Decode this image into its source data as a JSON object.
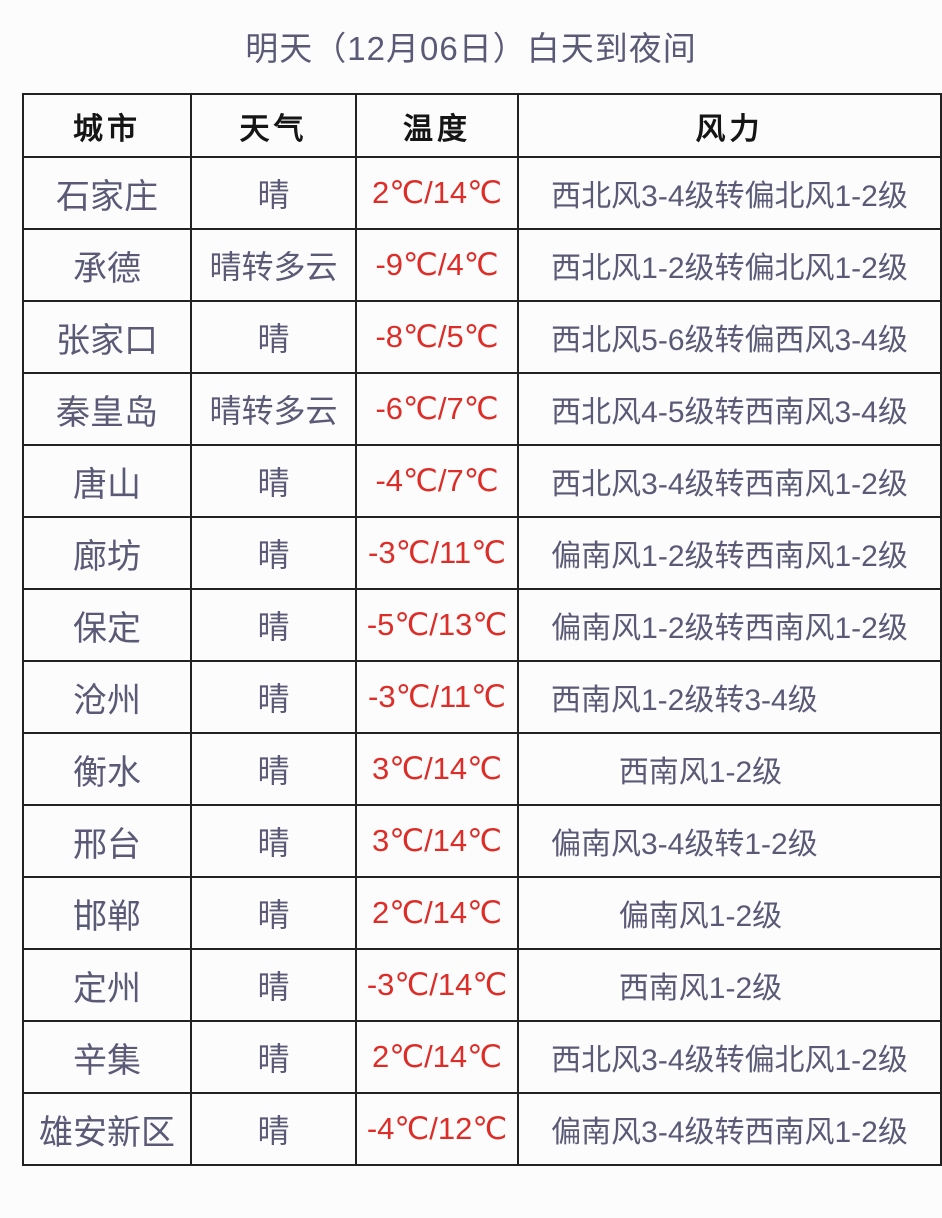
{
  "title": "明天（12月06日）白天到夜间",
  "colors": {
    "accent_red": "#dd2d28",
    "body_text": "#5b5a76",
    "header_text": "#151515",
    "border": "#222222",
    "background": "#fcfcfc"
  },
  "chart_data": {
    "type": "table",
    "title": "明天（12月06日）白天到夜间",
    "columns": [
      "城市",
      "天气",
      "温度",
      "风力"
    ],
    "rows": [
      {
        "city": "石家庄",
        "weather": "晴",
        "temperature": "2℃/14℃",
        "wind": "西北风3-4级转偏北风1-2级",
        "wind_align": "center"
      },
      {
        "city": "承德",
        "weather": "晴转多云",
        "temperature": "-9℃/4℃",
        "wind": "西北风1-2级转偏北风1-2级",
        "wind_align": "center"
      },
      {
        "city": "张家口",
        "weather": "晴",
        "temperature": "-8℃/5℃",
        "wind": "西北风5-6级转偏西风3-4级",
        "wind_align": "center"
      },
      {
        "city": "秦皇岛",
        "weather": "晴转多云",
        "temperature": "-6℃/7℃",
        "wind": "西北风4-5级转西南风3-4级",
        "wind_align": "center"
      },
      {
        "city": "唐山",
        "weather": "晴",
        "temperature": "-4℃/7℃",
        "wind": "西北风3-4级转西南风1-2级",
        "wind_align": "center"
      },
      {
        "city": "廊坊",
        "weather": "晴",
        "temperature": "-3℃/11℃",
        "wind": "偏南风1-2级转西南风1-2级",
        "wind_align": "center"
      },
      {
        "city": "保定",
        "weather": "晴",
        "temperature": "-5℃/13℃",
        "wind": "偏南风1-2级转西南风1-2级",
        "wind_align": "center"
      },
      {
        "city": "沧州",
        "weather": "晴",
        "temperature": "-3℃/11℃",
        "wind": "西南风1-2级转3-4级",
        "wind_align": "left"
      },
      {
        "city": "衡水",
        "weather": "晴",
        "temperature": "3℃/14℃",
        "wind": "西南风1-2级",
        "wind_align": "nudge"
      },
      {
        "city": "邢台",
        "weather": "晴",
        "temperature": "3℃/14℃",
        "wind": "偏南风3-4级转1-2级",
        "wind_align": "left"
      },
      {
        "city": "邯郸",
        "weather": "晴",
        "temperature": "2℃/14℃",
        "wind": "偏南风1-2级",
        "wind_align": "nudge"
      },
      {
        "city": "定州",
        "weather": "晴",
        "temperature": "-3℃/14℃",
        "wind": "西南风1-2级",
        "wind_align": "nudge"
      },
      {
        "city": "辛集",
        "weather": "晴",
        "temperature": "2℃/14℃",
        "wind": "西北风3-4级转偏北风1-2级",
        "wind_align": "center"
      },
      {
        "city": "雄安新区",
        "weather": "晴",
        "temperature": "-4℃/12℃",
        "wind": "偏南风3-4级转西南风1-2级",
        "wind_align": "center"
      }
    ]
  }
}
